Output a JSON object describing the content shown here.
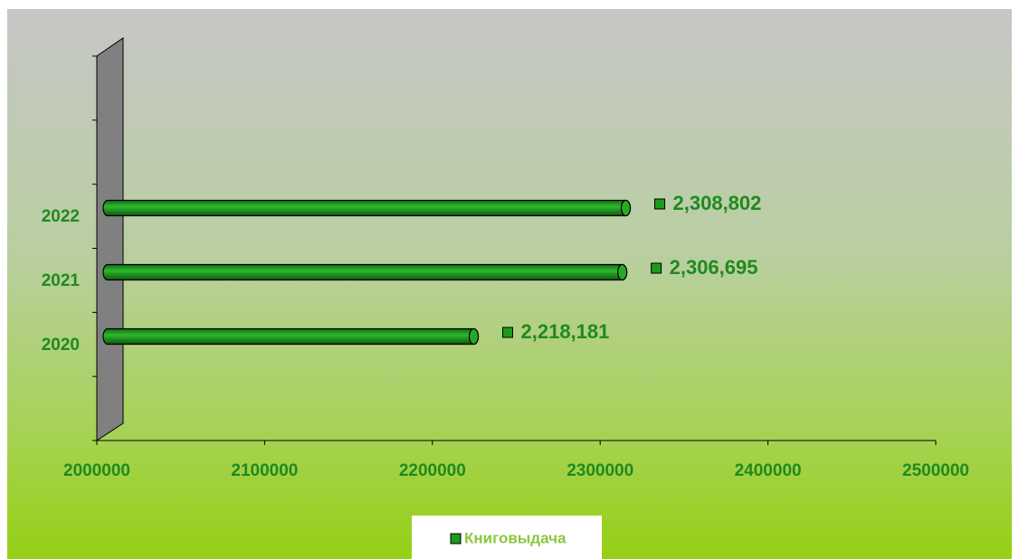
{
  "chart_data": {
    "type": "bar",
    "orientation": "horizontal",
    "categories": [
      "2020",
      "2021",
      "2022"
    ],
    "series": [
      {
        "name": "Книговыдача",
        "color": "#1e9a1e",
        "values": [
          2218181,
          2306695,
          2308802
        ],
        "value_labels": [
          "2,218,181",
          "2,306,695",
          "2,308,802"
        ]
      }
    ],
    "xlim": [
      2000000,
      2500000
    ],
    "xticks": [
      2000000,
      2100000,
      2200000,
      2300000,
      2400000,
      2500000
    ],
    "legend": "bottom",
    "grid": false
  }
}
